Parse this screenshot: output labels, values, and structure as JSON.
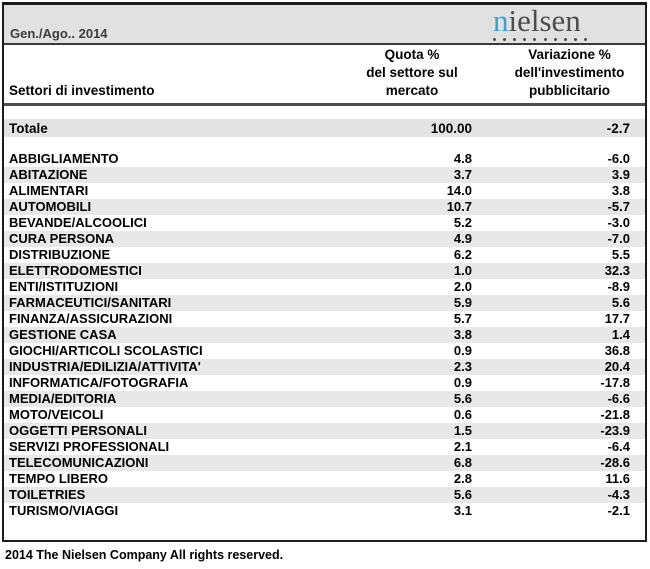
{
  "header": {
    "period": "Gen./Ago.. 2014",
    "logo": {
      "first_letter": "n",
      "rest": "ielsen",
      "dots": 10,
      "blue": "#35a3dc",
      "gray": "#4d4d4d"
    }
  },
  "columns": {
    "sector": "Settori di investimento",
    "quota": "Quota %\ndel settore sul\nmercato",
    "variazione": "Variazione %\ndell'investimento\npubblicitario"
  },
  "total": {
    "label": "Totale",
    "quota": "100.00",
    "variazione": "-2.7"
  },
  "rows": [
    {
      "label": "ABBIGLIAMENTO",
      "quota": "4.8",
      "variazione": "-6.0"
    },
    {
      "label": "ABITAZIONE",
      "quota": "3.7",
      "variazione": "3.9"
    },
    {
      "label": "ALIMENTARI",
      "quota": "14.0",
      "variazione": "3.8"
    },
    {
      "label": "AUTOMOBILI",
      "quota": "10.7",
      "variazione": "-5.7"
    },
    {
      "label": "BEVANDE/ALCOOLICI",
      "quota": "5.2",
      "variazione": "-3.0"
    },
    {
      "label": "CURA PERSONA",
      "quota": "4.9",
      "variazione": "-7.0"
    },
    {
      "label": "DISTRIBUZIONE",
      "quota": "6.2",
      "variazione": "5.5"
    },
    {
      "label": "ELETTRODOMESTICI",
      "quota": "1.0",
      "variazione": "32.3"
    },
    {
      "label": "ENTI/ISTITUZIONI",
      "quota": "2.0",
      "variazione": "-8.9"
    },
    {
      "label": "FARMACEUTICI/SANITARI",
      "quota": "5.9",
      "variazione": "5.6"
    },
    {
      "label": "FINANZA/ASSICURAZIONI",
      "quota": "5.7",
      "variazione": "17.7"
    },
    {
      "label": "GESTIONE CASA",
      "quota": "3.8",
      "variazione": "1.4"
    },
    {
      "label": "GIOCHI/ARTICOLI SCOLASTICI",
      "quota": "0.9",
      "variazione": "36.8"
    },
    {
      "label": "INDUSTRIA/EDILIZIA/ATTIVITA'",
      "quota": "2.3",
      "variazione": "20.4"
    },
    {
      "label": "INFORMATICA/FOTOGRAFIA",
      "quota": "0.9",
      "variazione": "-17.8"
    },
    {
      "label": "MEDIA/EDITORIA",
      "quota": "5.6",
      "variazione": "-6.6"
    },
    {
      "label": "MOTO/VEICOLI",
      "quota": "0.6",
      "variazione": "-21.8"
    },
    {
      "label": "OGGETTI PERSONALI",
      "quota": "1.5",
      "variazione": "-23.9"
    },
    {
      "label": "SERVIZI PROFESSIONALI",
      "quota": "2.1",
      "variazione": "-6.4"
    },
    {
      "label": "TELECOMUNICAZIONI",
      "quota": "6.8",
      "variazione": "-28.6"
    },
    {
      "label": "TEMPO LIBERO",
      "quota": "2.8",
      "variazione": "11.6"
    },
    {
      "label": "TOILETRIES",
      "quota": "5.6",
      "variazione": "-4.3"
    },
    {
      "label": "TURISMO/VIAGGI",
      "quota": "3.1",
      "variazione": "-2.1"
    }
  ],
  "footer": "2014 The Nielsen Company All rights reserved.",
  "chart_data": {
    "type": "table",
    "title": "Gen./Ago.. 2014",
    "columns": [
      "Settori di investimento",
      "Quota % del settore sul mercato",
      "Variazione % dell'investimento pubblicitario"
    ],
    "total": {
      "sector": "Totale",
      "quota": 100.0,
      "variazione": -2.7
    },
    "categories": [
      "ABBIGLIAMENTO",
      "ABITAZIONE",
      "ALIMENTARI",
      "AUTOMOBILI",
      "BEVANDE/ALCOOLICI",
      "CURA PERSONA",
      "DISTRIBUZIONE",
      "ELETTRODOMESTICI",
      "ENTI/ISTITUZIONI",
      "FARMACEUTICI/SANITARI",
      "FINANZA/ASSICURAZIONI",
      "GESTIONE CASA",
      "GIOCHI/ARTICOLI SCOLASTICI",
      "INDUSTRIA/EDILIZIA/ATTIVITA'",
      "INFORMATICA/FOTOGRAFIA",
      "MEDIA/EDITORIA",
      "MOTO/VEICOLI",
      "OGGETTI PERSONALI",
      "SERVIZI PROFESSIONALI",
      "TELECOMUNICAZIONI",
      "TEMPO LIBERO",
      "TOILETRIES",
      "TURISMO/VIAGGI"
    ],
    "series": [
      {
        "name": "Quota % del settore sul mercato",
        "values": [
          4.8,
          3.7,
          14.0,
          10.7,
          5.2,
          4.9,
          6.2,
          1.0,
          2.0,
          5.9,
          5.7,
          3.8,
          0.9,
          2.3,
          0.9,
          5.6,
          0.6,
          1.5,
          2.1,
          6.8,
          2.8,
          5.6,
          3.1
        ]
      },
      {
        "name": "Variazione % dell'investimento pubblicitario",
        "values": [
          -6.0,
          3.9,
          3.8,
          -5.7,
          -3.0,
          -7.0,
          5.5,
          32.3,
          -8.9,
          5.6,
          17.7,
          1.4,
          36.8,
          20.4,
          -17.8,
          -6.6,
          -21.8,
          -23.9,
          -6.4,
          -28.6,
          11.6,
          -4.3,
          -2.1
        ]
      }
    ]
  }
}
